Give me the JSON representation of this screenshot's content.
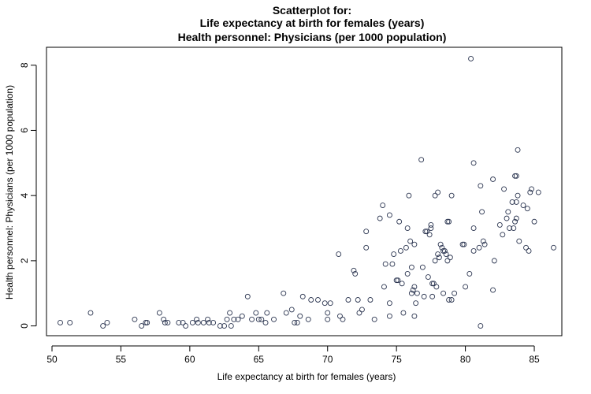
{
  "chart_data": {
    "type": "scatter",
    "title": [
      "Scatterplot for:",
      "Life expectancy at birth for females (years)",
      "Health personnel: Physicians (per 1000 population)"
    ],
    "xlabel": "Life expectancy at birth for females (years)",
    "ylabel": "Health personnel: Physicians (per 1000 population)",
    "xlim": [
      49.6,
      87.0
    ],
    "ylim": [
      -0.3,
      8.55
    ],
    "xticks": [
      50,
      55,
      60,
      65,
      70,
      75,
      80,
      85
    ],
    "yticks": [
      0,
      2,
      4,
      6,
      8
    ],
    "grid": false,
    "point_color": "#2b3550",
    "points": [
      [
        50.6,
        0.1
      ],
      [
        51.3,
        0.1
      ],
      [
        52.8,
        0.4
      ],
      [
        53.7,
        0.0
      ],
      [
        54.0,
        0.1
      ],
      [
        56.0,
        0.2
      ],
      [
        56.5,
        0.0
      ],
      [
        56.8,
        0.1
      ],
      [
        56.9,
        0.1
      ],
      [
        57.8,
        0.4
      ],
      [
        58.1,
        0.2
      ],
      [
        58.2,
        0.1
      ],
      [
        58.4,
        0.1
      ],
      [
        59.2,
        0.1
      ],
      [
        59.5,
        0.1
      ],
      [
        59.7,
        0.0
      ],
      [
        60.2,
        0.1
      ],
      [
        60.5,
        0.2
      ],
      [
        60.6,
        0.1
      ],
      [
        61.0,
        0.1
      ],
      [
        61.3,
        0.2
      ],
      [
        61.4,
        0.1
      ],
      [
        61.7,
        0.1
      ],
      [
        62.2,
        0.0
      ],
      [
        62.5,
        0.0
      ],
      [
        62.7,
        0.2
      ],
      [
        62.9,
        0.4
      ],
      [
        63.0,
        0.0
      ],
      [
        63.2,
        0.2
      ],
      [
        63.5,
        0.2
      ],
      [
        63.8,
        0.3
      ],
      [
        64.2,
        0.9
      ],
      [
        64.5,
        0.2
      ],
      [
        64.8,
        0.4
      ],
      [
        65.0,
        0.2
      ],
      [
        65.2,
        0.2
      ],
      [
        65.5,
        0.1
      ],
      [
        65.6,
        0.4
      ],
      [
        66.1,
        0.2
      ],
      [
        66.8,
        1.0
      ],
      [
        67.0,
        0.4
      ],
      [
        67.4,
        0.5
      ],
      [
        67.6,
        0.1
      ],
      [
        67.8,
        0.1
      ],
      [
        68.0,
        0.3
      ],
      [
        68.2,
        0.9
      ],
      [
        68.6,
        0.2
      ],
      [
        68.8,
        0.8
      ],
      [
        69.3,
        0.8
      ],
      [
        69.8,
        0.7
      ],
      [
        70.0,
        0.4
      ],
      [
        70.0,
        0.2
      ],
      [
        70.2,
        0.7
      ],
      [
        70.8,
        2.2
      ],
      [
        70.9,
        0.3
      ],
      [
        71.1,
        0.2
      ],
      [
        71.5,
        0.8
      ],
      [
        71.9,
        1.7
      ],
      [
        72.0,
        1.6
      ],
      [
        72.2,
        0.8
      ],
      [
        72.3,
        0.4
      ],
      [
        72.5,
        0.5
      ],
      [
        72.8,
        2.9
      ],
      [
        72.8,
        2.4
      ],
      [
        73.1,
        0.8
      ],
      [
        73.4,
        0.2
      ],
      [
        73.8,
        3.3
      ],
      [
        74.0,
        3.7
      ],
      [
        74.1,
        1.2
      ],
      [
        74.2,
        1.9
      ],
      [
        74.5,
        3.4
      ],
      [
        74.5,
        0.7
      ],
      [
        74.5,
        0.3
      ],
      [
        74.7,
        1.9
      ],
      [
        74.8,
        2.2
      ],
      [
        75.0,
        1.4
      ],
      [
        75.1,
        1.4
      ],
      [
        75.2,
        3.2
      ],
      [
        75.3,
        2.3
      ],
      [
        75.4,
        1.3
      ],
      [
        75.5,
        0.4
      ],
      [
        75.7,
        2.4
      ],
      [
        75.8,
        1.6
      ],
      [
        75.8,
        3.0
      ],
      [
        75.9,
        4.0
      ],
      [
        76.0,
        2.6
      ],
      [
        76.1,
        1.8
      ],
      [
        76.1,
        1.0
      ],
      [
        76.2,
        1.1
      ],
      [
        76.3,
        2.5
      ],
      [
        76.3,
        0.3
      ],
      [
        76.3,
        1.2
      ],
      [
        76.4,
        0.7
      ],
      [
        76.5,
        1.0
      ],
      [
        76.8,
        5.1
      ],
      [
        76.9,
        1.8
      ],
      [
        77.0,
        0.9
      ],
      [
        77.1,
        2.9
      ],
      [
        77.2,
        2.9
      ],
      [
        77.3,
        1.5
      ],
      [
        77.4,
        2.8
      ],
      [
        77.5,
        3.0
      ],
      [
        77.5,
        3.1
      ],
      [
        77.6,
        0.9
      ],
      [
        77.6,
        1.3
      ],
      [
        77.7,
        1.3
      ],
      [
        77.8,
        4.0
      ],
      [
        77.8,
        2.0
      ],
      [
        77.9,
        1.2
      ],
      [
        78.0,
        4.1
      ],
      [
        78.0,
        2.2
      ],
      [
        78.1,
        2.1
      ],
      [
        78.2,
        2.5
      ],
      [
        78.3,
        2.4
      ],
      [
        78.4,
        1.0
      ],
      [
        78.4,
        2.3
      ],
      [
        78.5,
        2.3
      ],
      [
        78.6,
        2.2
      ],
      [
        78.7,
        3.2
      ],
      [
        78.7,
        2.0
      ],
      [
        78.8,
        3.2
      ],
      [
        78.8,
        0.8
      ],
      [
        78.9,
        2.1
      ],
      [
        79.0,
        4.0
      ],
      [
        79.0,
        0.8
      ],
      [
        79.2,
        1.0
      ],
      [
        79.8,
        2.5
      ],
      [
        79.9,
        2.5
      ],
      [
        80.0,
        1.2
      ],
      [
        80.3,
        1.6
      ],
      [
        80.4,
        8.2
      ],
      [
        80.6,
        5.0
      ],
      [
        80.6,
        2.3
      ],
      [
        80.6,
        3.0
      ],
      [
        81.0,
        2.4
      ],
      [
        81.1,
        4.3
      ],
      [
        81.2,
        3.5
      ],
      [
        81.1,
        0.0
      ],
      [
        81.3,
        2.6
      ],
      [
        81.4,
        2.5
      ],
      [
        82.0,
        1.1
      ],
      [
        82.0,
        4.5
      ],
      [
        82.1,
        2.0
      ],
      [
        82.5,
        3.1
      ],
      [
        82.7,
        2.8
      ],
      [
        82.8,
        4.2
      ],
      [
        83.0,
        3.3
      ],
      [
        83.1,
        3.5
      ],
      [
        83.2,
        3.0
      ],
      [
        83.4,
        3.8
      ],
      [
        83.5,
        3.0
      ],
      [
        83.6,
        3.2
      ],
      [
        83.6,
        4.6
      ],
      [
        83.7,
        4.6
      ],
      [
        83.7,
        3.8
      ],
      [
        83.7,
        3.3
      ],
      [
        83.8,
        5.4
      ],
      [
        83.8,
        4.0
      ],
      [
        83.9,
        2.6
      ],
      [
        84.2,
        3.7
      ],
      [
        84.4,
        2.4
      ],
      [
        84.5,
        3.6
      ],
      [
        84.6,
        2.3
      ],
      [
        84.7,
        4.1
      ],
      [
        84.8,
        4.2
      ],
      [
        85.0,
        3.2
      ],
      [
        85.3,
        4.1
      ],
      [
        86.4,
        2.4
      ]
    ]
  }
}
